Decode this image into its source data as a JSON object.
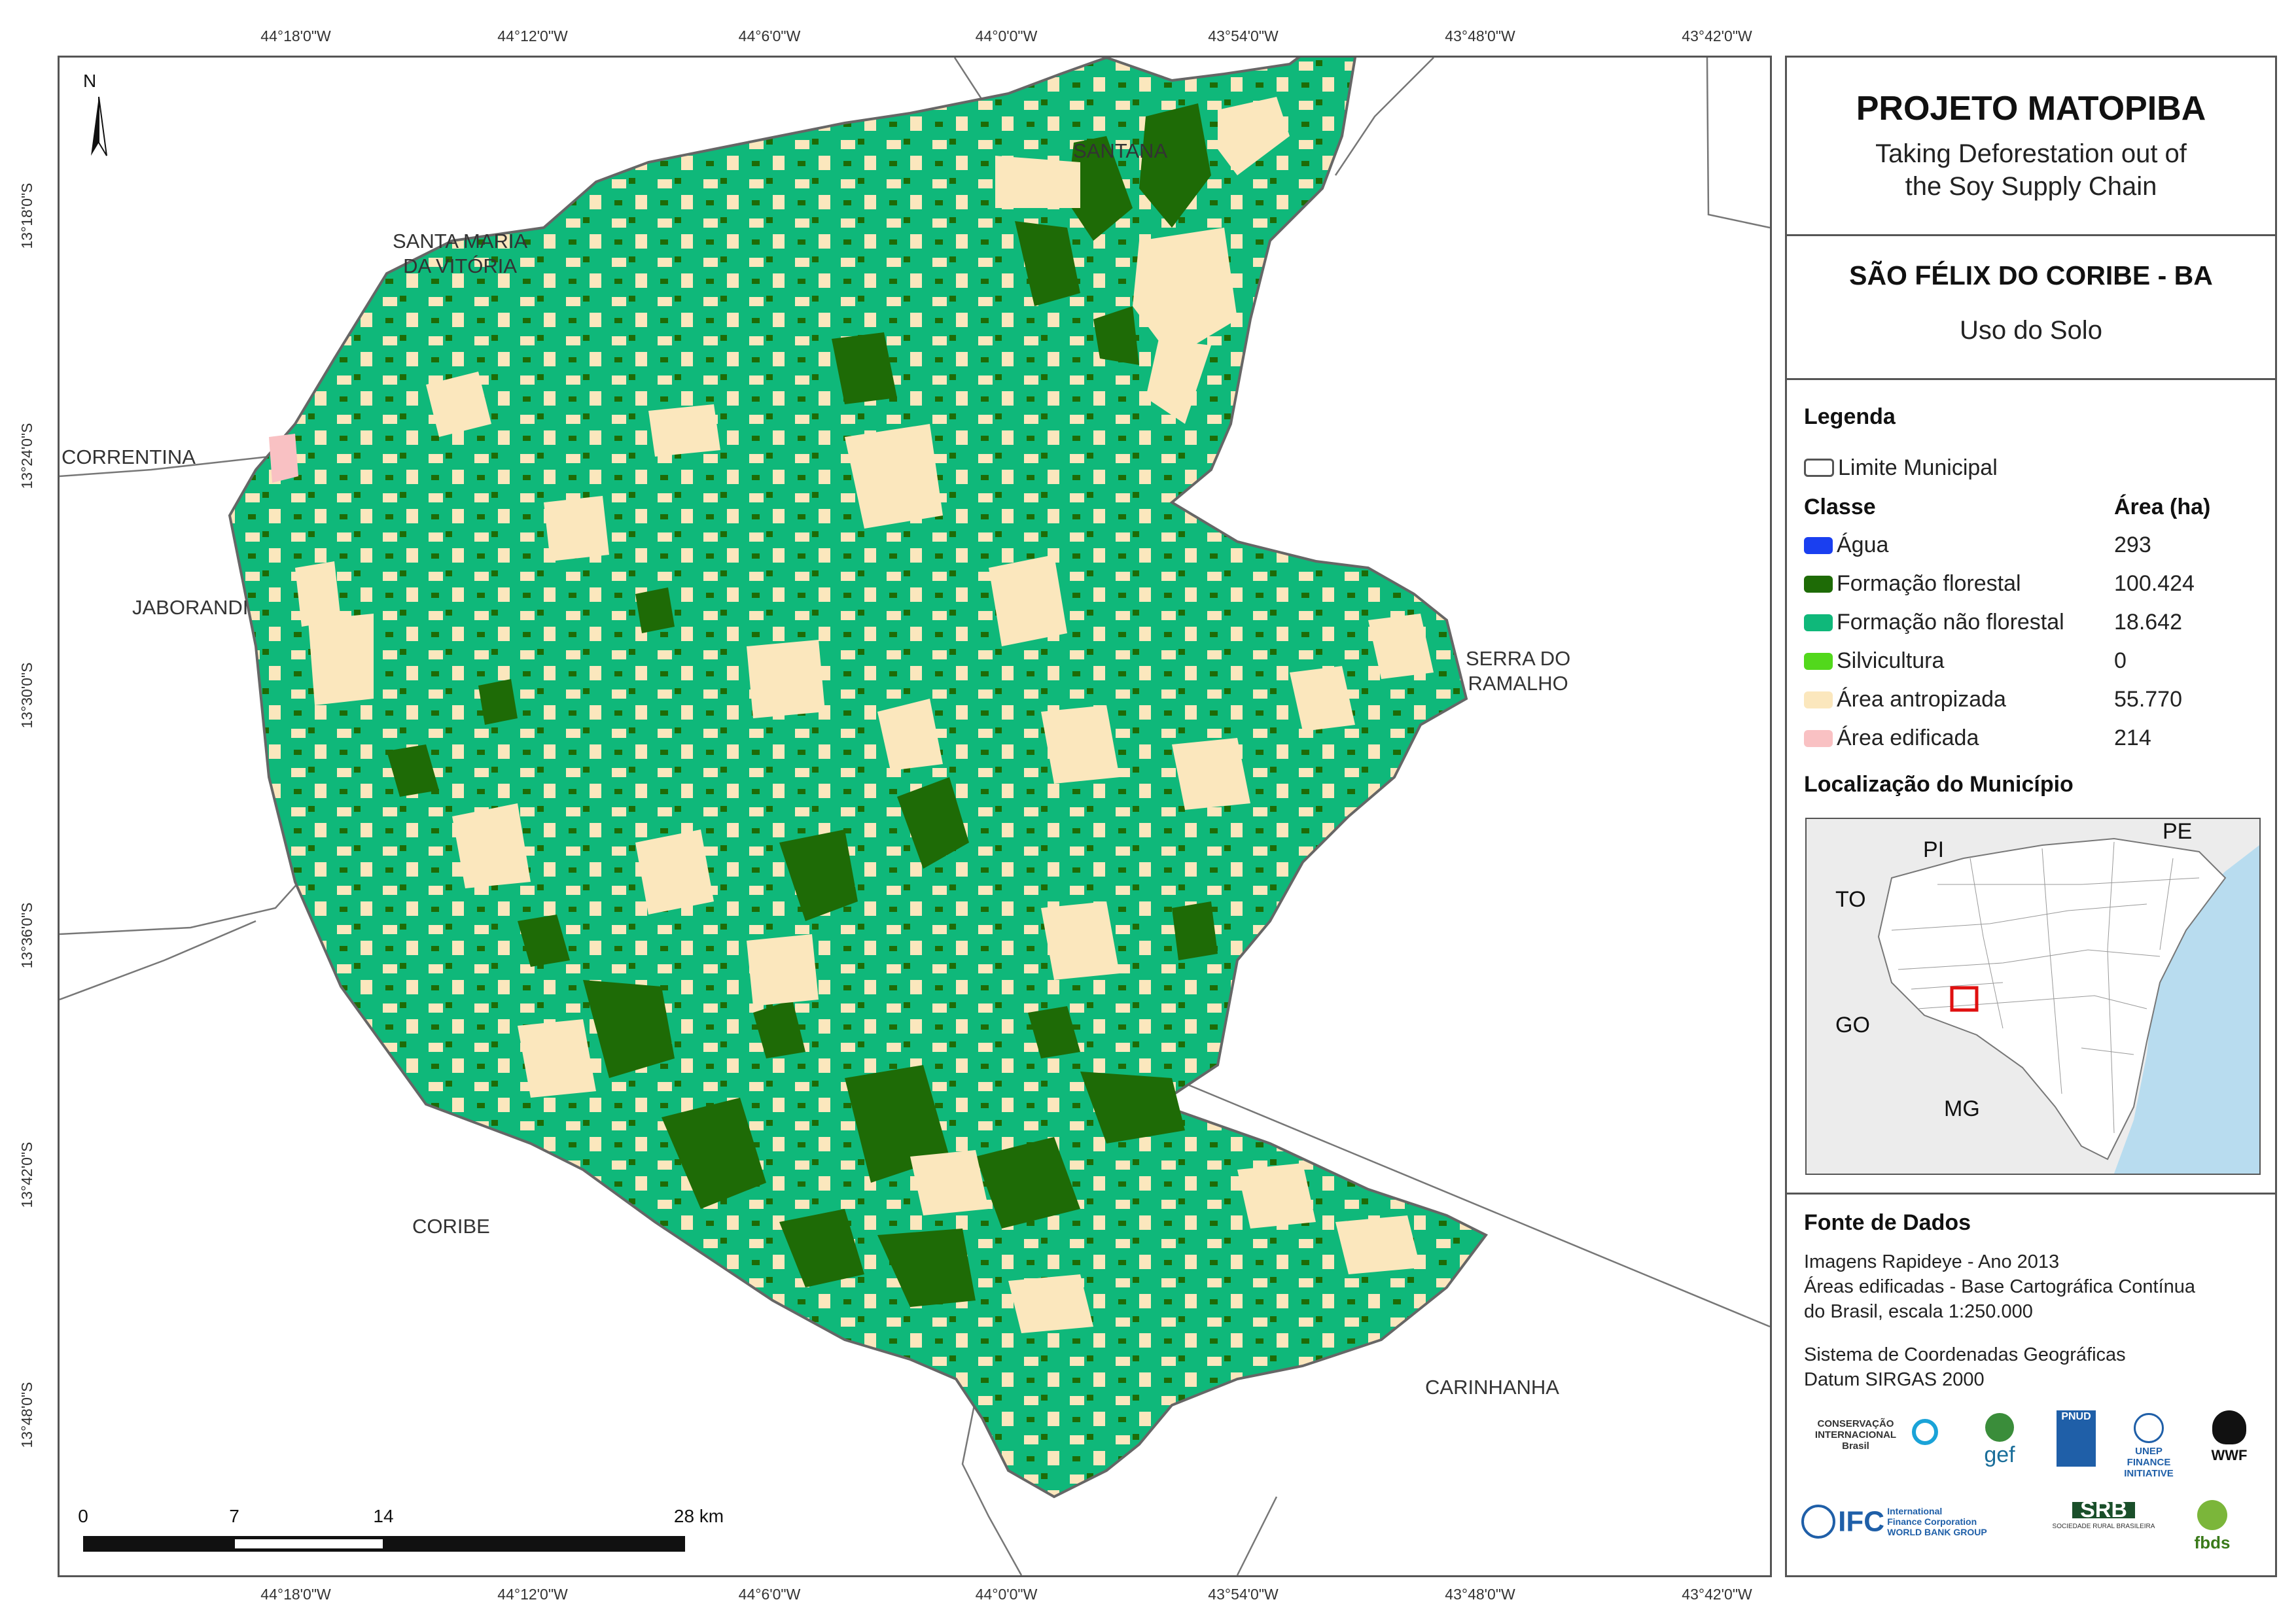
{
  "coords": {
    "longitudes": [
      "44°18'0\"W",
      "44°12'0\"W",
      "44°6'0\"W",
      "44°0'0\"W",
      "43°54'0\"W",
      "43°48'0\"W",
      "43°42'0\"W"
    ],
    "latitudes": [
      "13°18'0\"S",
      "13°24'0\"S",
      "13°30'0\"S",
      "13°36'0\"S",
      "13°42'0\"S",
      "13°48'0\"S"
    ]
  },
  "places": {
    "santana": "SANTANA",
    "santa_maria_1": "SANTA MARIA",
    "santa_maria_2": "DA VITÓRIA",
    "correntina": "CORRENTINA",
    "jaborandi": "JABORANDI",
    "serra_1": "SERRA DO",
    "serra_2": "RAMALHO",
    "coribe": "CORIBE",
    "carinhanha": "CARINHANHA"
  },
  "north_label": "N",
  "scale_labels": [
    "0",
    "7",
    "14",
    "28 km"
  ],
  "panel": {
    "title": "PROJETO MATOPIBA",
    "subtitle_1": "Taking Deforestation out of",
    "subtitle_2": "the Soy Supply Chain",
    "municipality": "SÃO FÉLIX DO CORIBE - BA",
    "map_theme": "Uso do Solo",
    "legend_heading": "Legenda",
    "boundary_label": "Limite Municipal",
    "class_heading": "Classe",
    "area_heading": "Área (ha)",
    "classes": [
      {
        "label": "Água",
        "area": "293",
        "color": "#1a3ff0"
      },
      {
        "label": "Formação florestal",
        "area": "100.424",
        "color": "#1e6b06"
      },
      {
        "label": "Formação não florestal",
        "area": "18.642",
        "color": "#0fb87a"
      },
      {
        "label": "Silvicultura",
        "area": "0",
        "color": "#52d81c"
      },
      {
        "label": "Área antropizada",
        "area": "55.770",
        "color": "#fbe7bd"
      },
      {
        "label": "Área edificada",
        "area": "214",
        "color": "#f9c1c3"
      }
    ],
    "location_heading": "Localização do Município",
    "inset_labels": {
      "pi": "PI",
      "pe": "PE",
      "to": "TO",
      "go": "GO",
      "mg": "MG"
    },
    "sources_heading": "Fonte de Dados",
    "sources_lines": [
      "Imagens Rapideye - Ano 2013",
      "Áreas edificadas - Base Cartográfica Contínua",
      "do Brasil, escala 1:250.000"
    ],
    "crs_lines": [
      "Sistema de Coordenadas Geográficas",
      "Datum SIRGAS 2000"
    ],
    "logos": {
      "ci_1": "CONSERVAÇÃO",
      "ci_2": "INTERNACIONAL",
      "ci_3": "Brasil",
      "gef": "gef",
      "pnud": "PNUD",
      "unep_1": "UNEP",
      "unep_2": "FINANCE",
      "unep_3": "INITIATIVE",
      "wwf": "WWF",
      "ifc": "IFC",
      "ifc_sub_1": "International",
      "ifc_sub_2": "Finance Corporation",
      "ifc_sub_3": "WORLD BANK GROUP",
      "srb": "SRB",
      "srb_sub": "SOCIEDADE RURAL BRASILEIRA",
      "fbds": "fbds"
    }
  }
}
